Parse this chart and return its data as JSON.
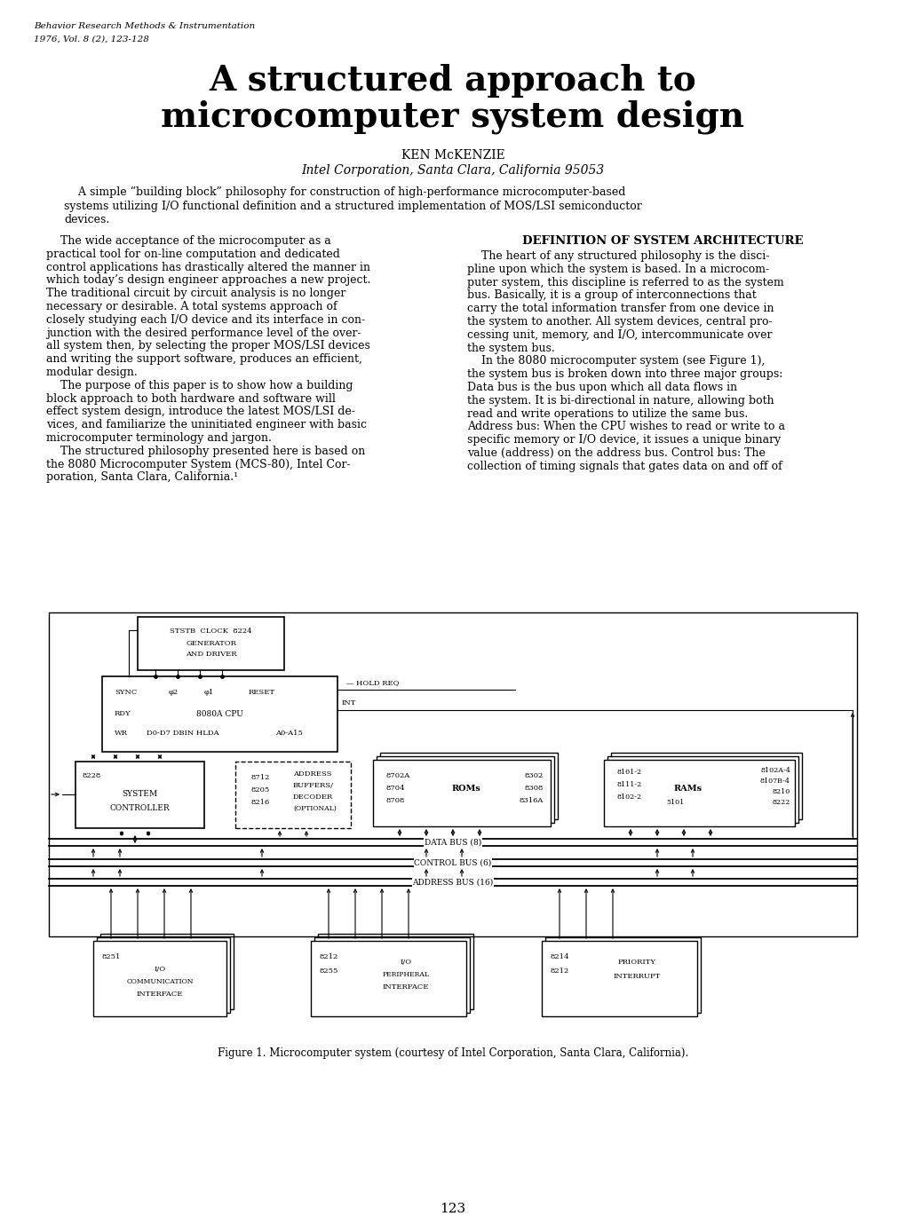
{
  "journal_header": "Behavior Research Methods & Instrumentation",
  "journal_subheader": "1976, Vol. 8 (2), 123-128",
  "title_line1": "A structured approach to",
  "title_line2": "microcomputer system design",
  "author": "KEN McKENZIE",
  "affiliation": "Intel Corporation, Santa Clara, California 95053",
  "abstract_line1": "    A simple “building block” philosophy for construction of high-performance microcomputer-based",
  "abstract_line2": "systems utilizing I/O functional definition and a structured implementation of MOS/LSI semiconductor",
  "abstract_line3": "devices.",
  "col1_lines": [
    "    The wide acceptance of the microcomputer as a",
    "practical tool for on-line computation and dedicated",
    "control applications has drastically altered the manner in",
    "which today’s design engineer approaches a new project.",
    "The traditional circuit by circuit analysis is no longer",
    "necessary or desirable. A total systems approach of",
    "closely studying each I/O device and its interface in con-",
    "junction with the desired performance level of the over-",
    "all system then, by selecting the proper MOS/LSI devices",
    "and writing the support software, produces an efficient,",
    "modular design.",
    "    The purpose of this paper is to show how a building",
    "block approach to both hardware and software will",
    "effect system design, introduce the latest MOS/LSI de-",
    "vices, and familiarize the uninitiated engineer with basic",
    "microcomputer terminology and jargon.",
    "    The structured philosophy presented here is based on",
    "the 8080 Microcomputer System (MCS-80), Intel Cor-",
    "poration, Santa Clara, California.¹"
  ],
  "col2_heading": "DEFINITION OF SYSTEM ARCHITECTURE",
  "col2_lines": [
    "    The heart of any structured philosophy is the disci-",
    "pline upon which the system is based. In a microcom-",
    "puter system, this discipline is referred to as the system",
    "bus. Basically, it is a group of interconnections that",
    "carry the total information transfer from one device in",
    "the system to another. All system devices, central pro-",
    "cessing unit, memory, and I/O, intercommunicate over",
    "the system bus.",
    "    In the 8080 microcomputer system (see Figure 1),",
    "the system bus is broken down into three major groups:",
    "Data bus is the bus upon which all data flows in",
    "the system. It is bi-directional in nature, allowing both",
    "read and write operations to utilize the same bus.",
    "Address bus: When the CPU wishes to read or write to a",
    "specific memory or I/O device, it issues a unique binary",
    "value (address) on the address bus. Control bus: The",
    "collection of timing signals that gates data on and off of"
  ],
  "figure_caption": "Figure 1. Microcomputer system (courtesy of Intel Corporation, Santa Clara, California).",
  "page_number": "123",
  "bg_color": "#ffffff",
  "text_color": "#000000"
}
